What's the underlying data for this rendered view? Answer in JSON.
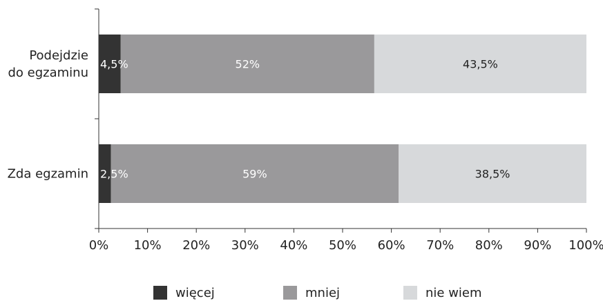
{
  "chart_data": {
    "type": "bar",
    "orientation": "horizontal",
    "stacked": true,
    "categories": [
      "Podejdzie do egzaminu",
      "Zda egzamin"
    ],
    "category_label_lines": [
      [
        "Podejdzie",
        "do egzaminu"
      ],
      [
        "Zda egzamin"
      ]
    ],
    "series": [
      {
        "name": "więcej",
        "values": [
          4.5,
          2.5
        ],
        "labels": [
          "4,5%",
          "2,5%"
        ],
        "color": "#333333",
        "label_color": "#ffffff"
      },
      {
        "name": "mniej",
        "values": [
          52,
          59
        ],
        "labels": [
          "52%",
          "59%"
        ],
        "color": "#9a999b",
        "label_color": "#ffffff"
      },
      {
        "name": "nie wiem",
        "values": [
          43.5,
          38.5
        ],
        "labels": [
          "43,5%",
          "38,5%"
        ],
        "color": "#d7d9db",
        "label_color": "#222222"
      }
    ],
    "xlim": [
      0,
      100
    ],
    "x_ticks": [
      0,
      10,
      20,
      30,
      40,
      50,
      60,
      70,
      80,
      90,
      100
    ],
    "x_tick_labels": [
      "0%",
      "10%",
      "20%",
      "30%",
      "40%",
      "50%",
      "60%",
      "70%",
      "80%",
      "90%",
      "100%"
    ],
    "grid": false,
    "legend_position": "bottom"
  }
}
